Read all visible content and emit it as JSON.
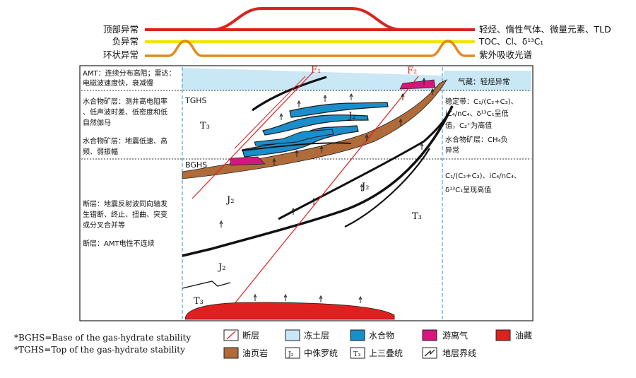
{
  "anomaly_curves": [
    {
      "label": "顶部异常",
      "right_text": "轻烃、惰性气体、微量元素、TLD",
      "color": "#d9251c"
    },
    {
      "label": "负异常",
      "right_text": "TOC、Cl、δ¹³C₁",
      "color": "#f4e400"
    },
    {
      "label": "环状异常",
      "right_text": "紫外吸收光谱",
      "color": "#e08a1e"
    }
  ],
  "left_panel": {
    "amt": [
      "AMT：连续分布高阻；雷达：",
      "电磁波速度快，衰减慢"
    ],
    "hydrate_logs": [
      "水合物矿层：测井高电阻率",
      "、低声波时差、低密度和低",
      "自然伽马"
    ],
    "hydrate_seismic": [
      "水合物矿层：地震低速、高",
      "频、弱振幅"
    ],
    "fault_seismic": [
      "断层：地震反射波同向轴发",
      "生错断、终止、扭曲、突变",
      "或分叉合并等"
    ],
    "fault_amt": [
      "断层：AMT电性不连续"
    ]
  },
  "right_panel": {
    "gas_reservoir": "气藏：轻烃异常",
    "stable_zone": [
      "稳定带：C₁/(C₂+C₃)、",
      "iC₄/nC₄、δ¹³C₁呈低",
      "值，C₂⁺为高值"
    ],
    "hydrate_ch4": [
      "水合物矿层：CH₄负",
      "异常"
    ],
    "deep_zone": [
      "C₁/(C₂+C₃)、iC₄/nC₄、",
      "δ¹³C₁呈现高值"
    ]
  },
  "section_labels": {
    "f1": "F₁",
    "f2": "F₂",
    "tghs": "TGHS",
    "bghs": "BGHS",
    "t3": "T₃",
    "j2": "J₂"
  },
  "footnotes": [
    "*BGHS=Base of the gas-hydrate stability",
    "*TGHS=Top of the gas-hydrate stability"
  ],
  "legend": [
    {
      "key": "fault",
      "label": "断层",
      "color": "#ffffff"
    },
    {
      "key": "permafrost",
      "label": "冻土层",
      "color": "#c9e7f5"
    },
    {
      "key": "hydrate",
      "label": "水合物",
      "color": "#1a8ecb"
    },
    {
      "key": "free_gas",
      "label": "游离气",
      "color": "#d7157f"
    },
    {
      "key": "oil",
      "label": "油藏",
      "color": "#e11f1f"
    },
    {
      "key": "oil_shale",
      "label": "油页岩",
      "color": "#b06b3a"
    },
    {
      "key": "jurassic",
      "label": "中侏罗统",
      "symbol": "J₂"
    },
    {
      "key": "triassic",
      "label": "上三叠统",
      "symbol": "T₃"
    },
    {
      "key": "boundary",
      "label": "地层界线"
    }
  ]
}
